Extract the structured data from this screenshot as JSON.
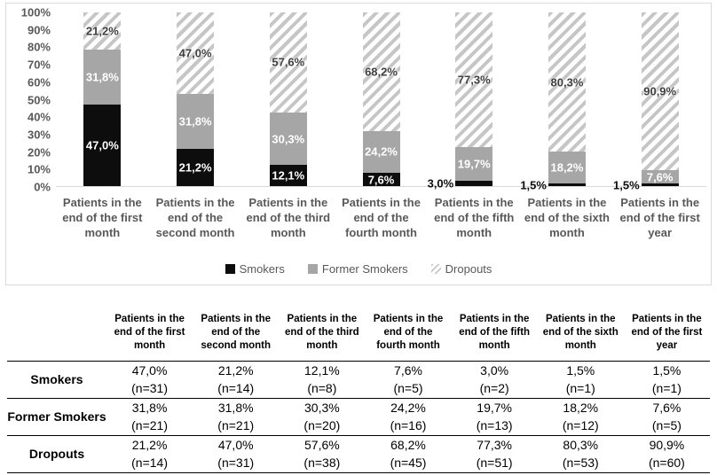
{
  "chart_data": {
    "type": "bar",
    "stacked": true,
    "units": "percent",
    "ylim": [
      0,
      100
    ],
    "y_ticks": [
      "100%",
      "90%",
      "80%",
      "70%",
      "60%",
      "50%",
      "40%",
      "30%",
      "20%",
      "10%",
      "0%"
    ],
    "grid": false,
    "legend_position": "bottom",
    "categories": [
      "Patients in the end of the first month",
      "Patients in the end of the second month",
      "Patients in the end of the third month",
      "Patients in the end of the fourth month",
      "Patients in the end of the fifth month",
      "Patients in the end of the sixth month",
      "Patients in the end of the first year"
    ],
    "series": [
      {
        "name": "Smokers",
        "color": "#0d0d0d",
        "pattern": null,
        "values": [
          47.0,
          21.2,
          12.1,
          7.6,
          3.0,
          1.5,
          1.5
        ],
        "labels": [
          "47,0%",
          "21,2%",
          "12,1%",
          "7,6%",
          "3,0%",
          "1,5%",
          "1,5%"
        ]
      },
      {
        "name": "Former Smokers",
        "color": "#a6a6a6",
        "pattern": null,
        "values": [
          31.8,
          31.8,
          30.3,
          24.2,
          19.7,
          18.2,
          7.6
        ],
        "labels": [
          "31,8%",
          "31,8%",
          "30,3%",
          "24,2%",
          "19,7%",
          "18,2%",
          "7,6%"
        ]
      },
      {
        "name": "Dropouts",
        "color": null,
        "pattern": "diagonal-hatch",
        "values": [
          21.2,
          47.0,
          57.6,
          68.2,
          77.3,
          80.3,
          90.9
        ],
        "labels": [
          "21,2%",
          "47,0%",
          "57,6%",
          "68,2%",
          "77,3%",
          "80,3%",
          "90,9%"
        ]
      }
    ]
  },
  "table": {
    "col_headers": [
      "",
      "Patients in the end of the first month",
      "Patients in the end of the second month",
      "Patients in the end of the third month",
      "Patients in the end of the fourth month",
      "Patients in the end of the fifth month",
      "Patients in the end of the sixth month",
      "Patients in the end of the first year"
    ],
    "rows": [
      {
        "label": "Smokers",
        "cells": [
          {
            "pct": "47,0%",
            "n": "(n=31)"
          },
          {
            "pct": "21,2%",
            "n": "(n=14)"
          },
          {
            "pct": "12,1%",
            "n": "(n=8)"
          },
          {
            "pct": "7,6%",
            "n": "(n=5)"
          },
          {
            "pct": "3,0%",
            "n": "(n=2)"
          },
          {
            "pct": "1,5%",
            "n": "(n=1)"
          },
          {
            "pct": "1,5%",
            "n": "(n=1)"
          }
        ]
      },
      {
        "label": "Former Smokers",
        "cells": [
          {
            "pct": "31,8%",
            "n": "(n=21)"
          },
          {
            "pct": "31,8%",
            "n": "(n=21)"
          },
          {
            "pct": "30,3%",
            "n": "(n=20)"
          },
          {
            "pct": "24,2%",
            "n": "(n=16)"
          },
          {
            "pct": "19,7%",
            "n": "(n=13)"
          },
          {
            "pct": "18,2%",
            "n": "(n=12)"
          },
          {
            "pct": "7,6%",
            "n": "(n=5)"
          }
        ]
      },
      {
        "label": "Dropouts",
        "cells": [
          {
            "pct": "21,2%",
            "n": "(n=14)"
          },
          {
            "pct": "47,0%",
            "n": "(n=31)"
          },
          {
            "pct": "57,6%",
            "n": "(n=38)"
          },
          {
            "pct": "68,2%",
            "n": "(n=45)"
          },
          {
            "pct": "77,3%",
            "n": "(n=51)"
          },
          {
            "pct": "80,3%",
            "n": "(n=53)"
          },
          {
            "pct": "90,9%",
            "n": "(n=60)"
          }
        ]
      }
    ]
  },
  "colors": {
    "smokers": "#0d0d0d",
    "former_smokers": "#a6a6a6",
    "hatch_line": "#c6c6c6",
    "axis_text": "#595959",
    "panel_border": "#d9d9d9",
    "table_rule": "#000000"
  }
}
